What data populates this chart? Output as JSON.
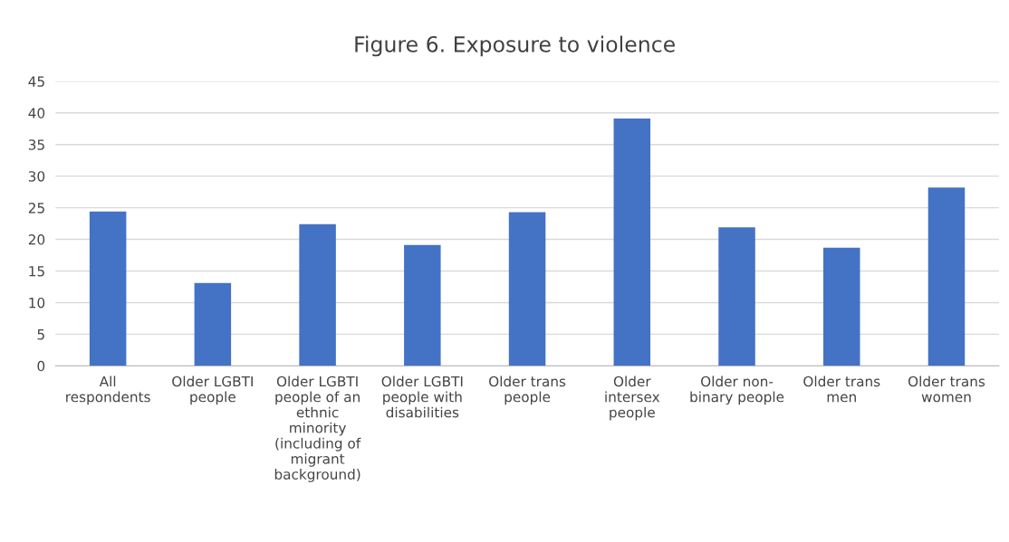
{
  "chart_data": {
    "type": "bar",
    "title": "Figure 6. Exposure to violence",
    "categories": [
      "All\nrespondents",
      "Older LGBTI\npeople",
      "Older LGBTI\npeople of an\nethnic\nminority\n(including of\nmigrant\nbackground)",
      "Older LGBTI\npeople with\ndisabilities",
      "Older trans\npeople",
      "Older\nintersex\npeople",
      "Older non-\nbinary people",
      "Older trans\nmen",
      "Older trans\nwomen"
    ],
    "values": [
      24.4,
      13.1,
      22.4,
      19.1,
      24.3,
      39.1,
      21.9,
      18.7,
      28.2
    ],
    "color": "#4472c4",
    "ylim": [
      0,
      45
    ],
    "yticks": [
      0,
      5,
      10,
      15,
      20,
      25,
      30,
      35,
      40,
      45
    ],
    "grid": "y"
  }
}
